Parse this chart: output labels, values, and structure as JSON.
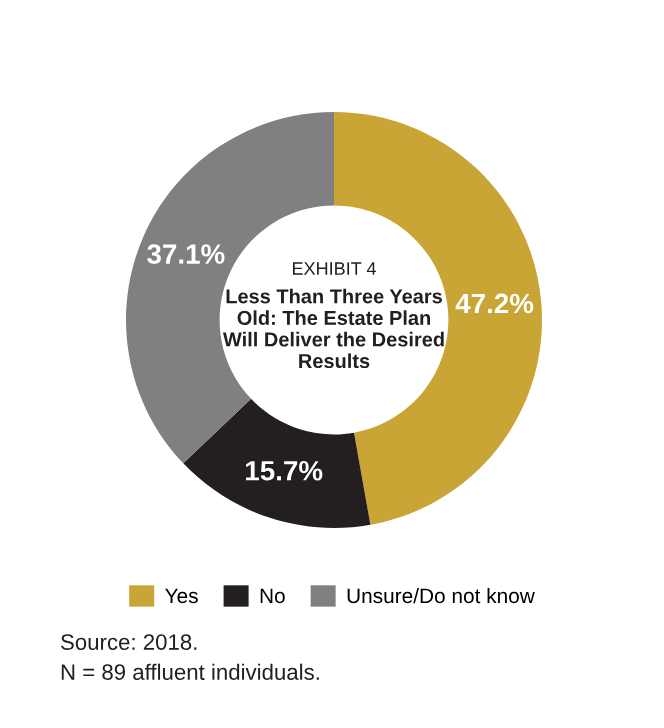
{
  "chart_data": {
    "type": "donut",
    "subtitle": "EXHIBIT 4",
    "title": "Less Than Three Years Old: The Estate Plan Will Deliver the Desired Results",
    "categories": [
      "Yes",
      "No",
      "Unsure/Do not know"
    ],
    "values": [
      47.2,
      15.7,
      37.1
    ],
    "colors": [
      "#c9a536",
      "#231f20",
      "#808082"
    ],
    "value_labels": [
      "47.2%",
      "15.7%",
      "37.1%"
    ],
    "legend": "bottom",
    "annotations": [
      "Source: 2018.",
      "N = 89 affluent individuals."
    ]
  }
}
